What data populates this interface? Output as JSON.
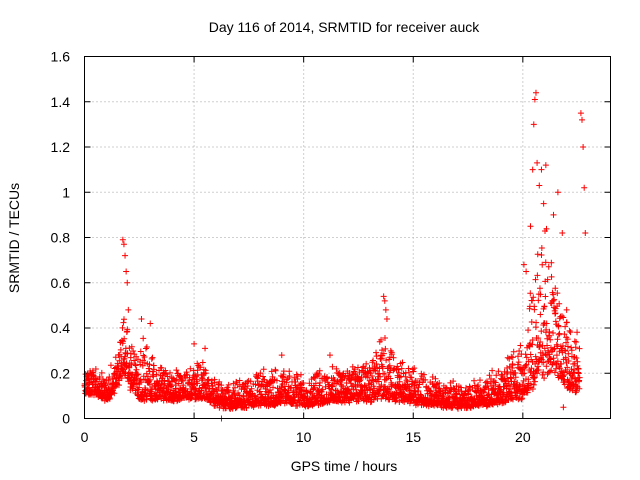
{
  "chart_data": {
    "type": "scatter",
    "title": "Day 116 of 2014, SRMTID for receiver auck",
    "xlabel": "GPS time / hours",
    "ylabel": "SRMTID / TECUs",
    "xlim": [
      0,
      24
    ],
    "ylim": [
      0,
      1.6
    ],
    "xticks": [
      0,
      5,
      10,
      15,
      20
    ],
    "xtick_labels": [
      "0",
      "5",
      "10",
      "15",
      "20"
    ],
    "yticks": [
      0,
      0.2,
      0.4,
      0.6,
      0.8,
      1.0,
      1.2,
      1.4,
      1.6
    ],
    "ytick_labels": [
      "0",
      "0.2",
      "0.4",
      "0.6",
      "0.8",
      "1",
      "1.2",
      "1.4",
      "1.6"
    ],
    "grid": true,
    "marker": "+",
    "marker_color": "#ff0000",
    "envelope": {
      "x": [
        0,
        0.5,
        1.0,
        1.5,
        1.8,
        2.1,
        2.5,
        3.0,
        3.5,
        4.0,
        4.5,
        5.0,
        5.5,
        6.0,
        6.5,
        7.0,
        8.0,
        9.0,
        10.0,
        11.0,
        12.0,
        13.0,
        13.7,
        14.2,
        15.0,
        16.0,
        17.0,
        18.0,
        18.5,
        19.0,
        19.5,
        20.0,
        20.3,
        20.6,
        21.0,
        21.4,
        21.8,
        22.2,
        22.6
      ],
      "low": [
        0.1,
        0.1,
        0.07,
        0.12,
        0.2,
        0.12,
        0.08,
        0.07,
        0.08,
        0.07,
        0.08,
        0.08,
        0.08,
        0.05,
        0.04,
        0.04,
        0.05,
        0.06,
        0.05,
        0.06,
        0.07,
        0.07,
        0.08,
        0.07,
        0.06,
        0.05,
        0.04,
        0.05,
        0.05,
        0.06,
        0.07,
        0.08,
        0.1,
        0.15,
        0.18,
        0.2,
        0.15,
        0.1,
        0.12
      ],
      "high": [
        0.25,
        0.22,
        0.18,
        0.3,
        0.55,
        0.35,
        0.33,
        0.35,
        0.25,
        0.22,
        0.23,
        0.25,
        0.25,
        0.2,
        0.16,
        0.18,
        0.2,
        0.23,
        0.2,
        0.23,
        0.25,
        0.25,
        0.4,
        0.28,
        0.22,
        0.18,
        0.16,
        0.17,
        0.2,
        0.24,
        0.3,
        0.38,
        0.55,
        0.75,
        0.85,
        0.7,
        0.55,
        0.4,
        0.4
      ]
    },
    "outliers": [
      {
        "x": 1.75,
        "y": 0.79
      },
      {
        "x": 1.8,
        "y": 0.77
      },
      {
        "x": 1.85,
        "y": 0.72
      },
      {
        "x": 1.9,
        "y": 0.65
      },
      {
        "x": 1.95,
        "y": 0.6
      },
      {
        "x": 2.0,
        "y": 0.48
      },
      {
        "x": 2.6,
        "y": 0.44
      },
      {
        "x": 3.0,
        "y": 0.42
      },
      {
        "x": 5.0,
        "y": 0.33
      },
      {
        "x": 5.5,
        "y": 0.31
      },
      {
        "x": 6.25,
        "y": 0.0
      },
      {
        "x": 9.0,
        "y": 0.28
      },
      {
        "x": 11.2,
        "y": 0.28
      },
      {
        "x": 13.65,
        "y": 0.54
      },
      {
        "x": 13.7,
        "y": 0.52
      },
      {
        "x": 13.75,
        "y": 0.48
      },
      {
        "x": 13.8,
        "y": 0.44
      },
      {
        "x": 20.05,
        "y": 0.68
      },
      {
        "x": 20.15,
        "y": 0.65
      },
      {
        "x": 20.35,
        "y": 0.85
      },
      {
        "x": 20.45,
        "y": 1.1
      },
      {
        "x": 20.5,
        "y": 1.3
      },
      {
        "x": 20.55,
        "y": 1.41
      },
      {
        "x": 20.6,
        "y": 1.44
      },
      {
        "x": 20.65,
        "y": 1.13
      },
      {
        "x": 20.75,
        "y": 1.03
      },
      {
        "x": 20.85,
        "y": 1.1
      },
      {
        "x": 20.95,
        "y": 0.95
      },
      {
        "x": 21.05,
        "y": 1.12
      },
      {
        "x": 21.6,
        "y": 1.0
      },
      {
        "x": 21.4,
        "y": 0.9
      },
      {
        "x": 21.8,
        "y": 0.82
      },
      {
        "x": 22.0,
        "y": 0.48
      },
      {
        "x": 21.85,
        "y": 0.05
      },
      {
        "x": 22.65,
        "y": 1.35
      },
      {
        "x": 22.7,
        "y": 1.32
      },
      {
        "x": 22.75,
        "y": 1.2
      },
      {
        "x": 22.8,
        "y": 1.02
      },
      {
        "x": 22.85,
        "y": 0.82
      }
    ]
  }
}
